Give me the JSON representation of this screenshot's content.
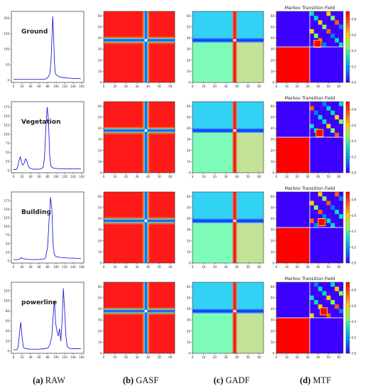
{
  "raw_panels": [
    {
      "label": "Ground",
      "yticks": [
        "0",
        "50",
        "100",
        "150",
        "200"
      ],
      "ylim": [
        0,
        210
      ],
      "xticks": [
        "0",
        "20",
        "40",
        "60",
        "80",
        "100",
        "120",
        "140",
        "160"
      ],
      "xlim": [
        0,
        160
      ],
      "line_color": "#1f22d8",
      "series": {
        "x": [
          0,
          10,
          20,
          30,
          40,
          50,
          60,
          70,
          75,
          80,
          85,
          88,
          90,
          92,
          94,
          96,
          98,
          100,
          104,
          110,
          120,
          130,
          140,
          150,
          158
        ],
        "y": [
          3,
          3,
          3,
          3,
          3,
          3,
          3,
          3,
          4,
          8,
          20,
          60,
          130,
          205,
          150,
          60,
          22,
          18,
          14,
          10,
          8,
          7,
          6,
          6,
          5
        ]
      }
    },
    {
      "label": "Vegetation",
      "yticks": [
        "0",
        "25",
        "50",
        "75",
        "100",
        "125",
        "150",
        "175"
      ],
      "ylim": [
        0,
        180
      ],
      "xticks": [
        "0",
        "20",
        "40",
        "60",
        "80",
        "100",
        "120",
        "140",
        "160"
      ],
      "xlim": [
        0,
        160
      ],
      "line_color": "#1f22d8",
      "series": {
        "x": [
          0,
          5,
          8,
          10,
          13,
          16,
          19,
          22,
          25,
          28,
          31,
          34,
          37,
          40,
          45,
          50,
          55,
          60,
          65,
          70,
          73,
          76,
          79,
          82,
          85,
          88,
          92,
          96,
          100,
          110,
          120,
          130,
          140,
          150,
          158
        ],
        "y": [
          3,
          3,
          5,
          12,
          28,
          38,
          22,
          15,
          20,
          32,
          28,
          14,
          8,
          6,
          4,
          4,
          4,
          4,
          5,
          10,
          40,
          120,
          175,
          140,
          40,
          12,
          8,
          6,
          6,
          5,
          5,
          5,
          5,
          5,
          5
        ]
      }
    },
    {
      "label": "Building",
      "yticks": [
        "0",
        "25",
        "50",
        "75",
        "100",
        "125",
        "150",
        "175"
      ],
      "ylim": [
        0,
        190
      ],
      "xticks": [
        "0",
        "20",
        "40",
        "60",
        "80",
        "100",
        "120",
        "140",
        "160"
      ],
      "xlim": [
        0,
        160
      ],
      "line_color": "#1f22d8",
      "series": {
        "x": [
          0,
          10,
          15,
          18,
          20,
          24,
          30,
          40,
          50,
          60,
          70,
          75,
          80,
          84,
          87,
          90,
          93,
          96,
          100,
          104,
          110,
          120,
          130,
          140,
          150,
          158
        ],
        "y": [
          4,
          4,
          6,
          10,
          8,
          6,
          5,
          4,
          4,
          4,
          5,
          8,
          40,
          130,
          185,
          150,
          45,
          18,
          12,
          12,
          10,
          9,
          8,
          8,
          7,
          7
        ]
      }
    },
    {
      "label": "powerline",
      "yticks": [
        "0",
        "20",
        "40",
        "60",
        "80",
        "100",
        "120"
      ],
      "ylim": [
        0,
        130
      ],
      "xticks": [
        "0",
        "20",
        "40",
        "60",
        "80",
        "100",
        "120",
        "140",
        "160"
      ],
      "xlim": [
        0,
        160
      ],
      "line_color": "#1f22d8",
      "series": {
        "x": [
          0,
          8,
          11,
          14,
          17,
          20,
          23,
          26,
          30,
          40,
          50,
          60,
          70,
          80,
          85,
          90,
          93,
          96,
          99,
          102,
          105,
          108,
          111,
          114,
          117,
          120,
          123,
          126,
          130,
          140,
          150,
          158
        ],
        "y": [
          3,
          3,
          8,
          35,
          58,
          30,
          8,
          6,
          5,
          4,
          4,
          4,
          5,
          6,
          12,
          30,
          70,
          100,
          55,
          40,
          30,
          45,
          20,
          60,
          125,
          80,
          30,
          10,
          6,
          5,
          5,
          5
        ]
      }
    }
  ],
  "heatmaps": {
    "ticks": [
      "0",
      "10",
      "20",
      "30",
      "40",
      "50",
      "60"
    ],
    "cross_center": 38,
    "gasf": {
      "background": "#ff1a1a",
      "band_color": "#2a62ff",
      "center_color": "#ffffff"
    },
    "gadf": {
      "top_color": "#32d2f5",
      "bottom_color": "#7dfcb8",
      "stripe_color": "#e02020",
      "band_color": "#1a3cff"
    }
  },
  "mtf": {
    "title": "Markov Transition Field",
    "colorbar_ticks": [
      "0.0",
      "0.2",
      "0.4",
      "0.6",
      "0.8"
    ],
    "colormap": [
      "#3b00ff",
      "#0080ff",
      "#00e0c0",
      "#80ff60",
      "#ffd000",
      "#ff6000",
      "#ff0000"
    ]
  },
  "captions": [
    {
      "letter": "(a)",
      "text": " RAW"
    },
    {
      "letter": "(b)",
      "text": " GASF"
    },
    {
      "letter": "(c)",
      "text": " GADF"
    },
    {
      "letter": "(d)",
      "text": " MTF"
    }
  ]
}
